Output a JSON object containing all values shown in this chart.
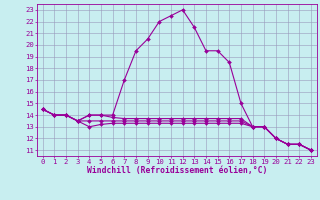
{
  "xlabel": "Windchill (Refroidissement éolien,°C)",
  "bg_color": "#c8eef0",
  "line_color": "#990099",
  "grid_color": "#9999bb",
  "xlim": [
    -0.5,
    23.5
  ],
  "ylim": [
    10.5,
    23.5
  ],
  "x_ticks": [
    0,
    1,
    2,
    3,
    4,
    5,
    6,
    7,
    8,
    9,
    10,
    11,
    12,
    13,
    14,
    15,
    16,
    17,
    18,
    19,
    20,
    21,
    22,
    23
  ],
  "y_ticks": [
    11,
    12,
    13,
    14,
    15,
    16,
    17,
    18,
    19,
    20,
    21,
    22,
    23
  ],
  "series": [
    [
      14.5,
      14.0,
      14.0,
      13.5,
      14.0,
      14.0,
      14.0,
      17.0,
      19.5,
      20.5,
      22.0,
      22.5,
      23.0,
      21.5,
      19.5,
      19.5,
      18.5,
      15.0,
      13.0,
      13.0,
      12.0,
      11.5,
      11.5,
      11.0
    ],
    [
      14.5,
      14.0,
      14.0,
      13.5,
      13.0,
      13.2,
      13.3,
      13.3,
      13.3,
      13.3,
      13.3,
      13.3,
      13.3,
      13.3,
      13.3,
      13.3,
      13.3,
      13.3,
      13.0,
      13.0,
      12.0,
      11.5,
      11.5,
      11.0
    ],
    [
      14.5,
      14.0,
      14.0,
      13.5,
      13.5,
      13.5,
      13.5,
      13.5,
      13.5,
      13.5,
      13.5,
      13.5,
      13.5,
      13.5,
      13.5,
      13.5,
      13.5,
      13.5,
      13.0,
      13.0,
      12.0,
      11.5,
      11.5,
      11.0
    ],
    [
      14.5,
      14.0,
      14.0,
      13.5,
      14.0,
      14.0,
      13.8,
      13.7,
      13.7,
      13.7,
      13.7,
      13.7,
      13.7,
      13.7,
      13.7,
      13.7,
      13.7,
      13.7,
      13.0,
      13.0,
      12.0,
      11.5,
      11.5,
      11.0
    ]
  ],
  "marker": "D",
  "markersize": 2.0,
  "linewidth": 0.8,
  "tick_fontsize": 5.2,
  "xlabel_fontsize": 5.8
}
